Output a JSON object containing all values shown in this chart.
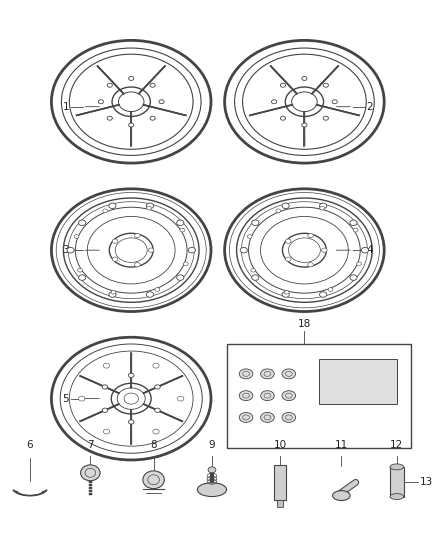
{
  "bg_color": "#ffffff",
  "fig_width": 4.38,
  "fig_height": 5.33,
  "dpi": 100,
  "lc": "#444444",
  "tc": "#222222",
  "fs": 7.5
}
